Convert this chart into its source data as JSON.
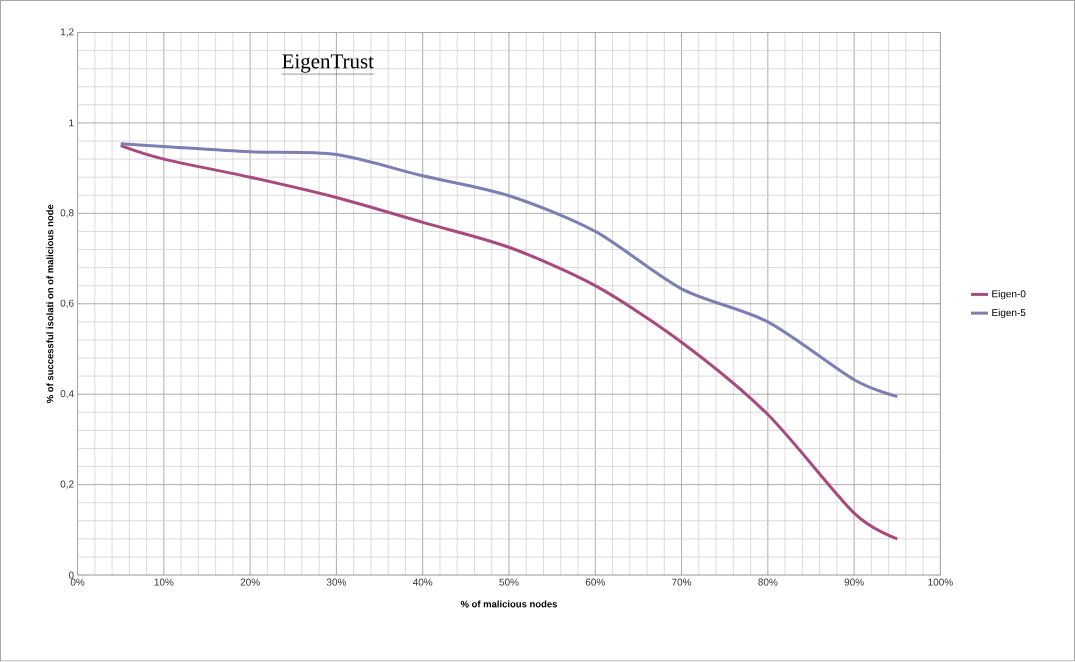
{
  "chart_data": {
    "type": "line",
    "title": "EigenTrust",
    "xlabel": "% of malicious nodes",
    "ylabel": "% of successful isolati on of malicious node",
    "x": [
      0.05,
      0.1,
      0.2,
      0.3,
      0.4,
      0.5,
      0.6,
      0.7,
      0.8,
      0.9,
      0.95
    ],
    "series": [
      {
        "name": "Eigen-0",
        "color": "#a84a7e",
        "values": [
          0.95,
          0.92,
          0.88,
          0.835,
          0.78,
          0.725,
          0.64,
          0.515,
          0.355,
          0.137,
          0.08
        ]
      },
      {
        "name": "Eigen-5",
        "color": "#7b7fb3",
        "values": [
          0.954,
          0.948,
          0.936,
          0.93,
          0.883,
          0.839,
          0.76,
          0.633,
          0.56,
          0.432,
          0.395
        ]
      }
    ],
    "xlim": [
      0,
      1
    ],
    "xticks": [
      {
        "value": 0,
        "label": "0%"
      },
      {
        "value": 0.1,
        "label": "10%"
      },
      {
        "value": 0.2,
        "label": "20%"
      },
      {
        "value": 0.3,
        "label": "30%"
      },
      {
        "value": 0.4,
        "label": "40%"
      },
      {
        "value": 0.5,
        "label": "50%"
      },
      {
        "value": 0.6,
        "label": "60%"
      },
      {
        "value": 0.7,
        "label": "70%"
      },
      {
        "value": 0.8,
        "label": "80%"
      },
      {
        "value": 0.9,
        "label": "90%"
      },
      {
        "value": 1,
        "label": "100%"
      }
    ],
    "ylim": [
      0,
      1.2
    ],
    "yticks": [
      0,
      {
        "value": 0.2,
        "label": "0,2"
      },
      {
        "value": 0.4,
        "label": "0,4"
      },
      {
        "value": 0.6,
        "label": "0,6"
      },
      {
        "value": 0.8,
        "label": "0,8"
      },
      1,
      {
        "value": 1.2,
        "label": "1,2"
      }
    ],
    "grid": true,
    "legend": "right",
    "marker": "none",
    "line_style": "solid"
  }
}
